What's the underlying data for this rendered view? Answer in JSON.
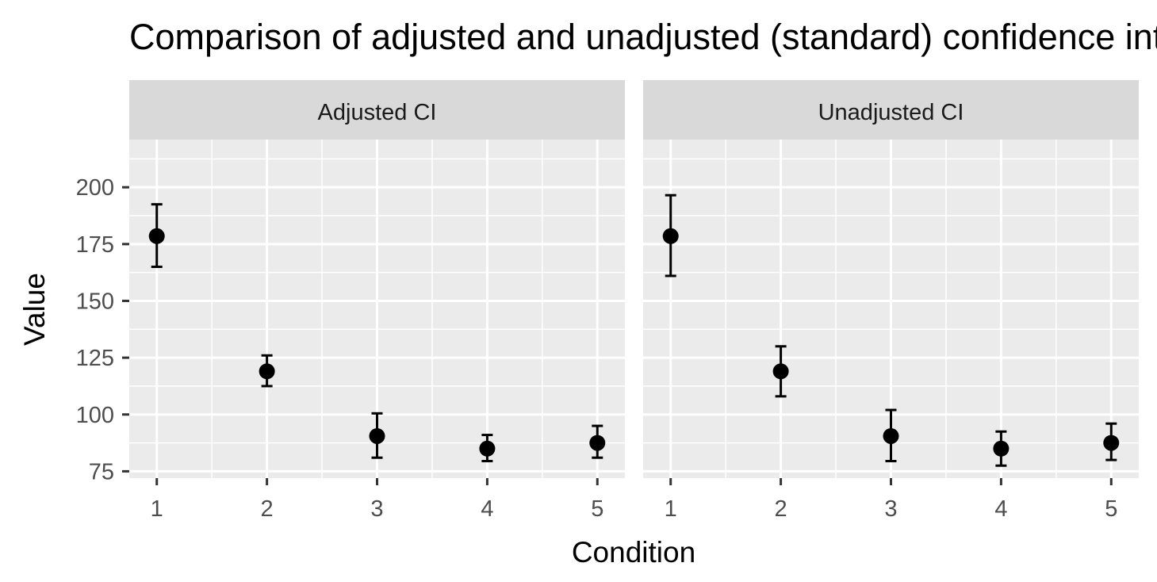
{
  "chart_data": {
    "type": "scatter",
    "title": "Comparison of adjusted and unadjusted (standard) confidence intervals",
    "xlabel": "Condition",
    "ylabel": "Value",
    "x": [
      1,
      2,
      3,
      4,
      5
    ],
    "xlim": [
      0.75,
      5.25
    ],
    "ylim": [
      72,
      221
    ],
    "yticks": [
      75,
      100,
      125,
      150,
      175,
      200
    ],
    "grid": true,
    "panels": [
      {
        "label": "Adjusted CI",
        "means": [
          178.5,
          119,
          90.5,
          85,
          87.5
        ],
        "lower": [
          165,
          112.5,
          81,
          79.5,
          81
        ],
        "upper": [
          192.5,
          126,
          100.5,
          91,
          95
        ]
      },
      {
        "label": "Unadjusted CI",
        "means": [
          178.5,
          119,
          90.5,
          85,
          87.5
        ],
        "lower": [
          161,
          108,
          79.5,
          77.5,
          80
        ],
        "upper": [
          196.5,
          130,
          102,
          92.5,
          96
        ]
      }
    ],
    "colors": {
      "panel_bg": "#ebebeb",
      "strip_bg": "#d9d9d9",
      "grid": "#ffffff",
      "points": "#000000"
    }
  }
}
